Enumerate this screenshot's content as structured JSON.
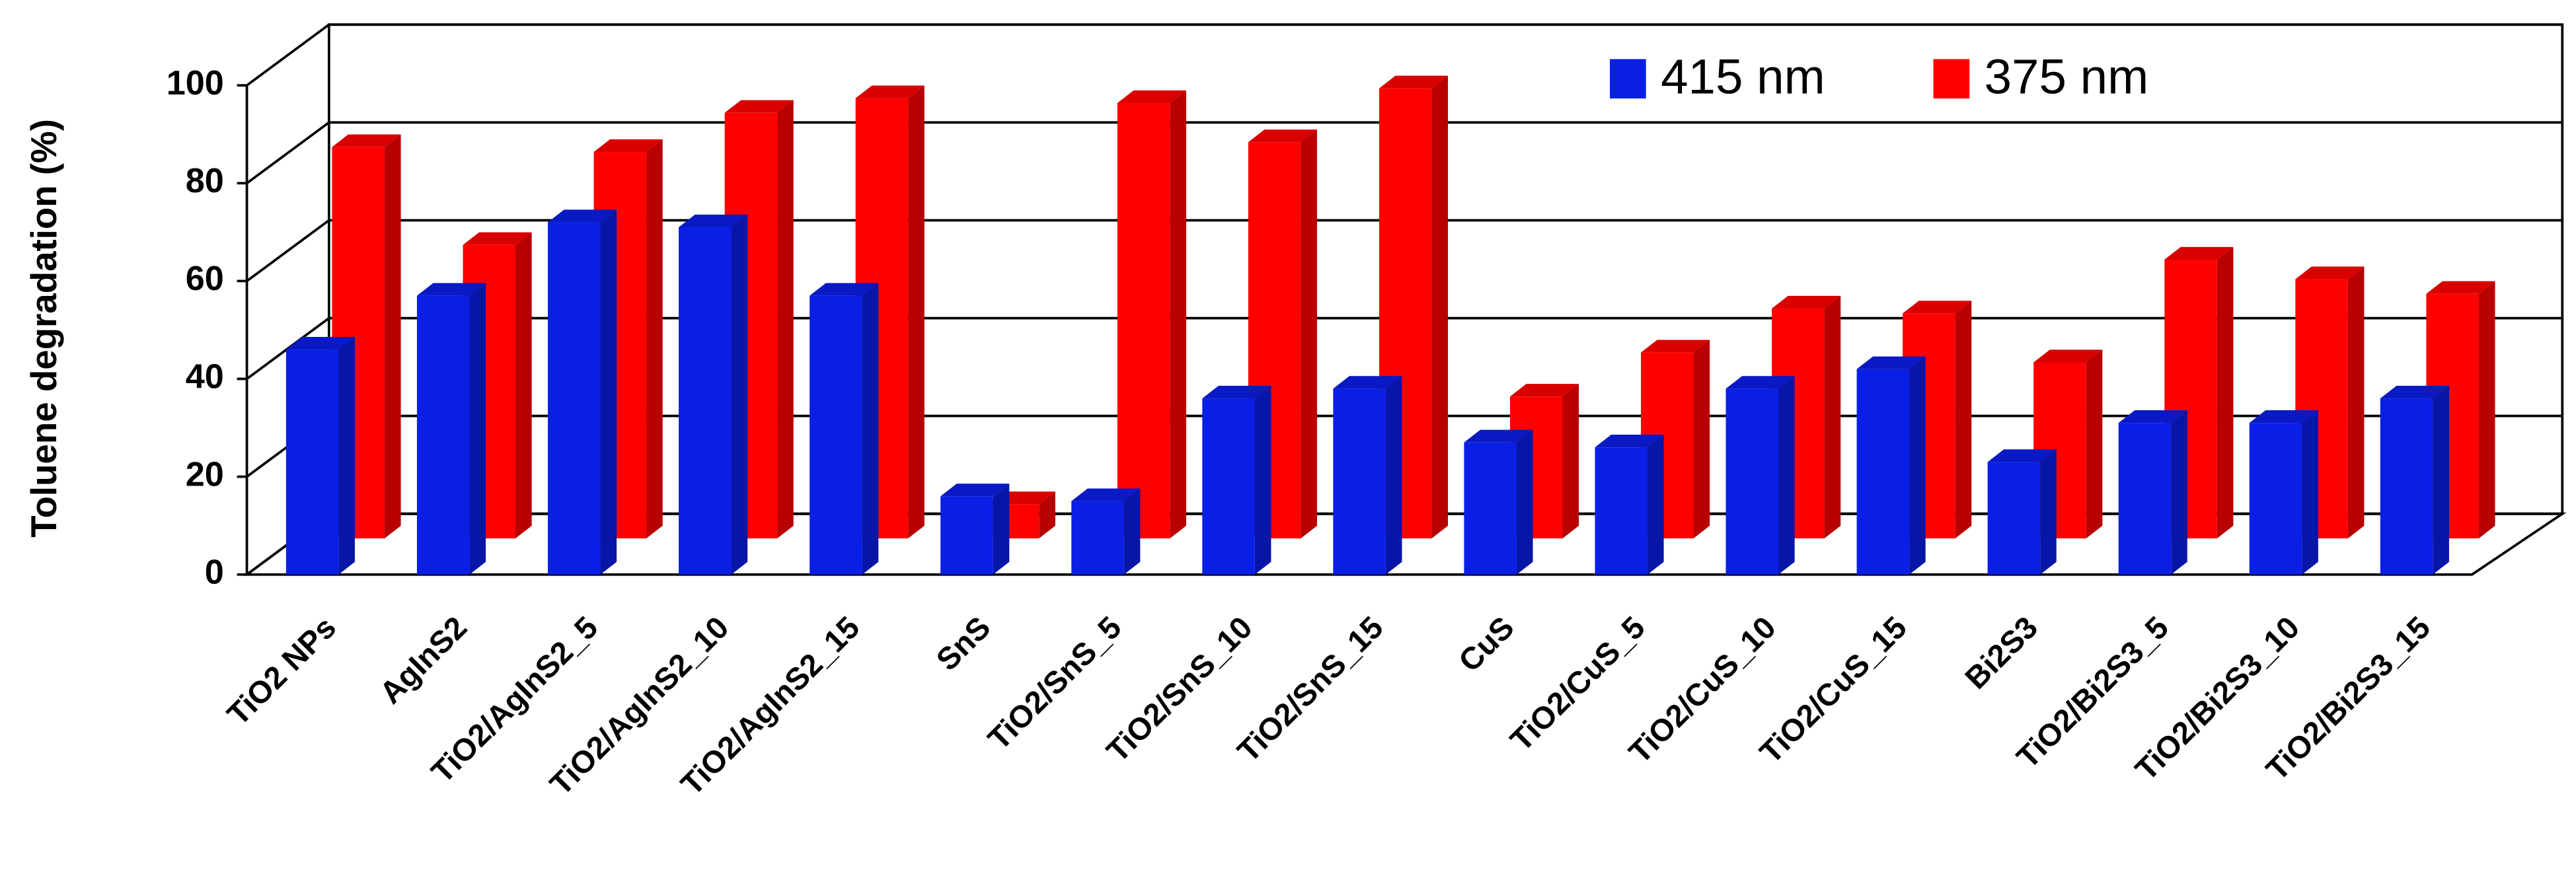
{
  "chart_data": {
    "type": "bar3d",
    "y_label": "Toluene degradation (%)",
    "categories": [
      "TiO2 NPs",
      "AgInS2",
      "TiO2/AgInS2_5",
      "TiO2/AgInS2_10",
      "TiO2/AgInS2_15",
      "SnS",
      "TiO2/SnS_5",
      "TiO2/SnS_10",
      "TiO2/SnS_15",
      "CuS",
      "TiO2/CuS_5",
      "TiO2/CuS_10",
      "TiO2/CuS_15",
      "Bi2S3",
      "TiO2/Bi2S3_5",
      "TiO2/Bi2S3_10",
      "TiO2/Bi2S3_15"
    ],
    "series": [
      {
        "name": "415 nm",
        "color": "#0a1fe6",
        "values": [
          46,
          57,
          72,
          71,
          57,
          16,
          15,
          36,
          38,
          27,
          26,
          38,
          42,
          23,
          31,
          31,
          36
        ]
      },
      {
        "name": "375 nm",
        "color": "#ff0000",
        "values": [
          80,
          60,
          79,
          87,
          90,
          7,
          89,
          81,
          92,
          29,
          38,
          47,
          46,
          36,
          57,
          53,
          50
        ]
      }
    ],
    "ylim": [
      0,
      100
    ],
    "yticks": [
      0,
      20,
      40,
      60,
      80,
      100
    ],
    "grid": true,
    "legend": "upper right"
  }
}
